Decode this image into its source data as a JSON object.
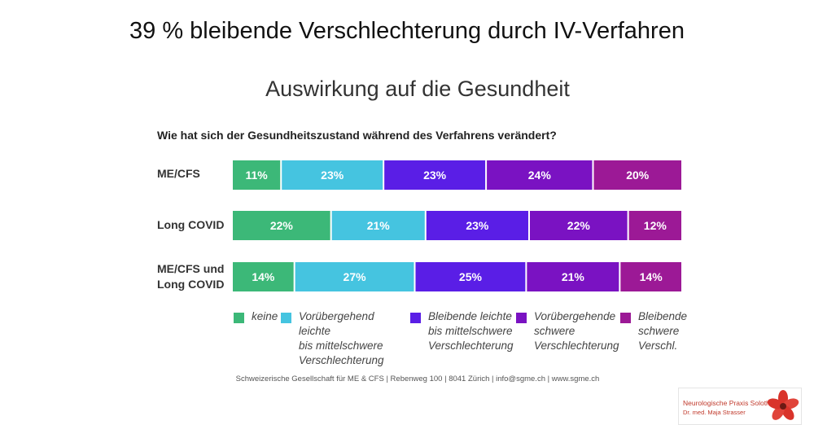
{
  "slide_title": "39 % bleibende Verschlechterung durch IV-Verfahren",
  "chart_data": {
    "type": "bar",
    "orientation": "horizontal-stacked-100",
    "title": "Auswirkung auf die Gesundheit",
    "subtitle": "Wie hat sich der Gesundheitszustand während des Verfahrens verändert?",
    "categories": [
      [
        "ME/CFS"
      ],
      [
        "Long COVID"
      ],
      [
        "ME/CFS und",
        "Long COVID"
      ]
    ],
    "series": [
      {
        "name": [
          "keine"
        ],
        "color": "#3cb878",
        "values": [
          11,
          22,
          14
        ]
      },
      {
        "name": [
          "Vorübergehend leichte",
          "bis mittelschwere",
          "Verschlechterung"
        ],
        "color": "#45c4e0",
        "values": [
          23,
          21,
          27
        ]
      },
      {
        "name": [
          "Bleibende leichte",
          "bis mittelschwere",
          "Verschlechterung"
        ],
        "color": "#5a1ee6",
        "values": [
          23,
          23,
          25
        ]
      },
      {
        "name": [
          "Vorübergehende",
          "schwere",
          "Verschlechterung"
        ],
        "color": "#7a12c2",
        "values": [
          24,
          22,
          21
        ]
      },
      {
        "name": [
          "Bleibende",
          "schwere",
          "Verschl."
        ],
        "color": "#9c1996",
        "values": [
          20,
          12,
          14
        ]
      }
    ],
    "value_suffix": "%",
    "xlim": [
      0,
      100
    ],
    "legend_position": "bottom"
  },
  "footer": "Schweizerische Gesellschaft für ME & CFS  |  Rebenweg 100  |  8041 Zürich  |  info@sgme.ch  |  www.sgme.ch",
  "logo": {
    "line1": "Neurologische Praxis Solothurn",
    "line2": "Dr. med. Maja Strasser"
  }
}
